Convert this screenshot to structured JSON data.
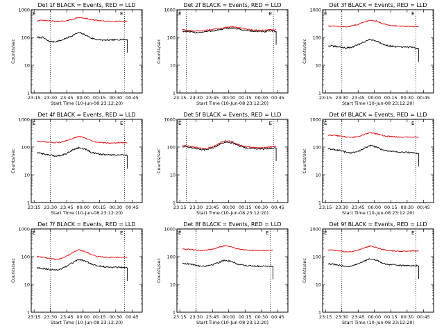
{
  "figure": {
    "colors": {
      "events": "#000000",
      "lld": "#e00000",
      "background": "#ffffff",
      "axes": "#000000"
    }
  },
  "chart_data": [
    {
      "type": "line",
      "title": "Det 1f BLACK = Events, RED = LLD",
      "xlabel": "Start Time (10-Jun-08 23:12:20)",
      "ylabel": "Counts/sec",
      "yscale": "log",
      "ylim": [
        1,
        1000
      ],
      "yticks": [
        "1",
        "10",
        "100",
        "1000"
      ],
      "xticks": [
        "23:15",
        "23:30",
        "23:45",
        "00:00",
        "00:15",
        "00:30",
        "00:45"
      ],
      "corner_marks": [
        "E",
        "E"
      ],
      "vlines_time": [
        "23:30",
        "00:38"
      ],
      "series": [
        {
          "name": "BLACK = Events",
          "color": "#000000",
          "values": [
            100,
            100,
            72,
            70,
            78,
            95,
            120,
            150,
            125,
            95,
            85,
            80,
            80,
            82,
            85,
            85
          ]
        },
        {
          "name": "RED = LLD",
          "color": "#e00000",
          "values": [
            400,
            410,
            400,
            380,
            380,
            400,
            450,
            530,
            500,
            440,
            410,
            390,
            380,
            380,
            385,
            380
          ]
        }
      ]
    },
    {
      "type": "line",
      "title": "Det 2f BLACK = Events, RED = LLD",
      "xlabel": "Start Time (10-Jun-08 23:12:20)",
      "ylabel": "Counts/sec",
      "yscale": "log",
      "ylim": [
        1,
        1000
      ],
      "yticks": [
        "1",
        "10",
        "100",
        "1000"
      ],
      "xticks": [
        "23:15",
        "23:30",
        "23:45",
        "00:00",
        "00:15",
        "00:30",
        "00:45"
      ],
      "corner_marks": [
        "E",
        "E"
      ],
      "vlines_time": [
        "23:21",
        "00:41"
      ],
      "series": [
        {
          "name": "BLACK = Events",
          "color": "#000000",
          "values": [
            170,
            160,
            150,
            155,
            165,
            175,
            190,
            210,
            220,
            200,
            180,
            170,
            165,
            160,
            170,
            165
          ]
        },
        {
          "name": "RED = LLD",
          "color": "#e00000",
          "values": [
            190,
            180,
            170,
            175,
            185,
            195,
            210,
            235,
            245,
            225,
            205,
            190,
            185,
            180,
            190,
            185
          ]
        }
      ]
    },
    {
      "type": "line",
      "title": "Det 3f BLACK = Events, RED = LLD",
      "xlabel": "Start Time (10-Jun-08 23:12:20)",
      "ylabel": "Counts/sec",
      "yscale": "log",
      "ylim": [
        1,
        1000
      ],
      "yticks": [
        "1",
        "10",
        "100",
        "1000"
      ],
      "xticks": [
        "23:15",
        "23:30",
        "23:45",
        "00:00",
        "00:15",
        "00:30",
        "00:45"
      ],
      "corner_marks": [
        "E",
        "E"
      ],
      "vlines_time": [
        "23:30",
        "00:38"
      ],
      "series": [
        {
          "name": "BLACK = Events",
          "color": "#000000",
          "values": [
            50,
            48,
            45,
            42,
            45,
            55,
            70,
            85,
            75,
            58,
            50,
            47,
            45,
            45,
            44,
            40
          ]
        },
        {
          "name": "RED = LLD",
          "color": "#e00000",
          "values": [
            260,
            255,
            250,
            245,
            260,
            300,
            360,
            420,
            390,
            320,
            280,
            265,
            255,
            250,
            250,
            248
          ]
        }
      ]
    },
    {
      "type": "line",
      "title": "Det 4f BLACK = Events, RED = LLD",
      "xlabel": "Start Time (10-Jun-08 23:12:20)",
      "ylabel": "Counts/sec",
      "yscale": "log",
      "ylim": [
        1,
        1000
      ],
      "yticks": [
        "1",
        "10",
        "100",
        "1000"
      ],
      "xticks": [
        "23:15",
        "23:30",
        "23:45",
        "00:00",
        "00:15",
        "00:30",
        "00:45"
      ],
      "corner_marks": [
        "E",
        "E"
      ],
      "vlines_time": [
        "23:30",
        "00:38"
      ],
      "series": [
        {
          "name": "BLACK = Events",
          "color": "#000000",
          "values": [
            62,
            58,
            52,
            48,
            50,
            60,
            80,
            95,
            85,
            65,
            57,
            54,
            52,
            52,
            52,
            50
          ]
        },
        {
          "name": "RED = LLD",
          "color": "#e00000",
          "values": [
            165,
            160,
            150,
            145,
            150,
            170,
            210,
            240,
            215,
            170,
            150,
            145,
            140,
            140,
            145,
            140
          ]
        }
      ]
    },
    {
      "type": "line",
      "title": "Det 5f BLACK = Events, RED = LLD",
      "xlabel": "Start Time (10-Jun-08 23:12:20)",
      "ylabel": "Counts/sec",
      "yscale": "log",
      "ylim": [
        1,
        1000
      ],
      "yticks": [
        "1",
        "10",
        "100",
        "1000"
      ],
      "xticks": [
        "23:15",
        "23:30",
        "23:45",
        "00:00",
        "00:15",
        "00:30",
        "00:45"
      ],
      "corner_marks": [
        "E",
        "E"
      ],
      "vlines_time": [
        "23:21",
        "00:41"
      ],
      "series": [
        {
          "name": "BLACK = Events",
          "color": "#000000",
          "values": [
            105,
            100,
            90,
            80,
            80,
            95,
            125,
            155,
            140,
            110,
            95,
            90,
            85,
            85,
            90,
            95
          ]
        },
        {
          "name": "RED = LLD",
          "color": "#e00000",
          "values": [
            115,
            110,
            100,
            90,
            90,
            105,
            140,
            170,
            155,
            122,
            105,
            100,
            95,
            95,
            100,
            105
          ]
        }
      ]
    },
    {
      "type": "line",
      "title": "Det 6f BLACK = Events, RED = LLD",
      "xlabel": "Start Time (10-Jun-08 23:12:20)",
      "ylabel": "Counts/sec",
      "yscale": "log",
      "ylim": [
        1,
        1000
      ],
      "yticks": [
        "1",
        "10",
        "100",
        "1000"
      ],
      "xticks": [
        "23:15",
        "23:30",
        "23:45",
        "00:00",
        "00:15",
        "00:30",
        "00:45"
      ],
      "corner_marks": [
        "E",
        "E"
      ],
      "vlines_time": [
        "23:30",
        "00:38"
      ],
      "series": [
        {
          "name": "BLACK = Events",
          "color": "#000000",
          "values": [
            85,
            82,
            75,
            65,
            62,
            70,
            90,
            115,
            100,
            80,
            72,
            68,
            65,
            65,
            62,
            60
          ]
        },
        {
          "name": "RED = LLD",
          "color": "#e00000",
          "values": [
            270,
            265,
            250,
            230,
            225,
            240,
            280,
            330,
            300,
            260,
            245,
            235,
            228,
            228,
            230,
            225
          ]
        }
      ]
    },
    {
      "type": "line",
      "title": "Det 7f BLACK = Events, RED = LLD",
      "xlabel": "Start Time (10-Jun-08 23:12:20)",
      "ylabel": "Counts/sec",
      "yscale": "log",
      "ylim": [
        1,
        1000
      ],
      "yticks": [
        "1",
        "10",
        "100",
        "1000"
      ],
      "xticks": [
        "23:15",
        "23:30",
        "23:45",
        "00:00",
        "00:15",
        "00:30",
        "00:45"
      ],
      "corner_marks": [
        "E",
        "E"
      ],
      "vlines_time": [
        "23:30",
        "00:38"
      ],
      "series": [
        {
          "name": "BLACK = Events",
          "color": "#000000",
          "values": [
            40,
            38,
            35,
            33,
            36,
            45,
            60,
            80,
            70,
            55,
            47,
            44,
            42,
            42,
            42,
            40
          ]
        },
        {
          "name": "RED = LLD",
          "color": "#e00000",
          "values": [
            100,
            95,
            88,
            80,
            85,
            105,
            140,
            175,
            155,
            120,
            103,
            97,
            95,
            95,
            95,
            95
          ]
        }
      ]
    },
    {
      "type": "line",
      "title": "Det 8f BLACK = Events, RED = LLD",
      "xlabel": "Start Time (10-Jun-08 23:12:20)",
      "ylabel": "Counts/sec",
      "yscale": "log",
      "ylim": [
        1,
        1000
      ],
      "yticks": [
        "1",
        "10",
        "100",
        "1000"
      ],
      "xticks": [
        "23:15",
        "23:30",
        "23:45",
        "00:00",
        "00:15",
        "00:30",
        "00:45"
      ],
      "corner_marks": [
        "E",
        "E"
      ],
      "vlines_time": [
        "23:30",
        "00:38"
      ],
      "series": [
        {
          "name": "BLACK = Events",
          "color": "#000000",
          "values": [
            58,
            55,
            50,
            46,
            47,
            52,
            62,
            75,
            68,
            55,
            50,
            47,
            46,
            46,
            46,
            46
          ]
        },
        {
          "name": "RED = LLD",
          "color": "#e00000",
          "values": [
            190,
            185,
            175,
            165,
            170,
            190,
            220,
            250,
            230,
            195,
            180,
            172,
            168,
            168,
            170,
            168
          ]
        }
      ]
    },
    {
      "type": "line",
      "title": "Det 9f BLACK = Events, RED = LLD",
      "xlabel": "Start Time (10-Jun-08 23:12:20)",
      "ylabel": "Counts/sec",
      "yscale": "log",
      "ylim": [
        1,
        1000
      ],
      "yticks": [
        "1",
        "10",
        "100",
        "1000"
      ],
      "xticks": [
        "23:15",
        "23:30",
        "23:45",
        "00:00",
        "00:15",
        "00:30",
        "00:45"
      ],
      "corner_marks": [
        "E",
        "E"
      ],
      "vlines_time": [
        "23:30",
        "00:38"
      ],
      "series": [
        {
          "name": "BLACK = Events",
          "color": "#000000",
          "values": [
            55,
            53,
            48,
            45,
            46,
            55,
            70,
            85,
            75,
            58,
            52,
            50,
            48,
            48,
            48,
            47
          ]
        },
        {
          "name": "RED = LLD",
          "color": "#e00000",
          "values": [
            175,
            170,
            160,
            152,
            155,
            175,
            210,
            240,
            215,
            180,
            165,
            160,
            157,
            157,
            160,
            160
          ]
        }
      ]
    }
  ]
}
